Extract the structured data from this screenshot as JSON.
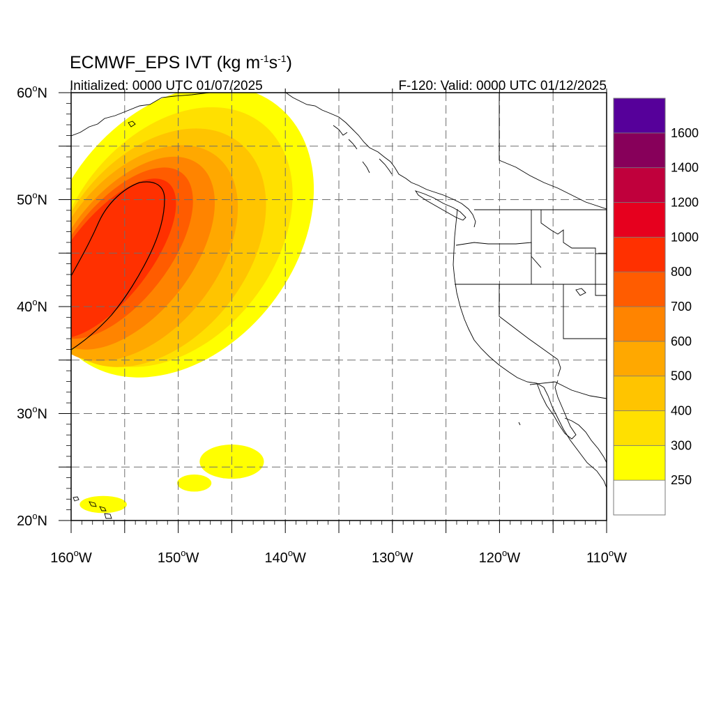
{
  "title": {
    "main_prefix": "ECMWF_EPS IVT (kg m",
    "sup1": "-1",
    "mid": "s",
    "sup2": "-1",
    "suffix": ")",
    "initialized": "Initialized: 0000 UTC 01/07/2025",
    "valid": "F-120: Valid: 0000 UTC 01/12/2025"
  },
  "map": {
    "lon_range": [
      -160,
      -110
    ],
    "lat_range": [
      20,
      60
    ],
    "lon_ticks": [
      {
        "value": -160,
        "label": "160"
      },
      {
        "value": -150,
        "label": "150"
      },
      {
        "value": -140,
        "label": "140"
      },
      {
        "value": -130,
        "label": "130"
      },
      {
        "value": -120,
        "label": "120"
      },
      {
        "value": -110,
        "label": "110"
      }
    ],
    "lat_ticks": [
      {
        "value": 20,
        "label": "20"
      },
      {
        "value": 30,
        "label": "30"
      },
      {
        "value": 40,
        "label": "40"
      },
      {
        "value": 50,
        "label": "50"
      },
      {
        "value": 60,
        "label": "60"
      }
    ],
    "lon_suffix": "W",
    "lat_suffix": "N",
    "degree": "o",
    "grid": "dashed, every 5 degrees",
    "ivt_fields": [
      {
        "level": 250,
        "color": "#ffff00",
        "lat": 47.0,
        "lon": -150.0,
        "lat_radius": 15.0,
        "lon_radius": 11.0,
        "rotation": 38
      },
      {
        "level": 300,
        "color": "#ffe000",
        "lat": 46.5,
        "lon": -150.5,
        "lat_radius": 13.5,
        "lon_radius": 9.5,
        "rotation": 38
      },
      {
        "level": 400,
        "color": "#ffc400",
        "lat": 45.5,
        "lon": -152.0,
        "lat_radius": 12.5,
        "lon_radius": 8.5,
        "rotation": 38
      },
      {
        "level": 500,
        "color": "#ffa800",
        "lat": 45.0,
        "lon": -153.5,
        "lat_radius": 11.5,
        "lon_radius": 7.2,
        "rotation": 38
      },
      {
        "level": 600,
        "color": "#ff8400",
        "lat": 45.0,
        "lon": -154.5,
        "lat_radius": 10.5,
        "lon_radius": 5.8,
        "rotation": 38
      },
      {
        "level": 700,
        "color": "#ff5c00",
        "lat": 45.0,
        "lon": -155.5,
        "lat_radius": 9.5,
        "lon_radius": 4.6,
        "rotation": 38
      },
      {
        "level": 800,
        "color": "#ff3000",
        "lat": 44.5,
        "lon": -156.5,
        "lat_radius": 9.0,
        "lon_radius": 3.8,
        "rotation": 38
      }
    ],
    "ivt_patches": [
      {
        "level": 250,
        "color": "#ffff00",
        "lat": 25.5,
        "lon": -145.0,
        "lat_radius": 1.6,
        "lon_radius": 3.0
      },
      {
        "level": 250,
        "color": "#ffff00",
        "lat": 23.5,
        "lon": -148.5,
        "lat_radius": 0.8,
        "lon_radius": 1.6
      },
      {
        "level": 250,
        "color": "#ffff00",
        "lat": 21.5,
        "lon": -157.0,
        "lat_radius": 0.8,
        "lon_radius": 2.2
      }
    ]
  },
  "colorbar": {
    "levels": [
      250,
      300,
      400,
      500,
      600,
      700,
      800,
      1000,
      1200,
      1400,
      1600
    ],
    "labels": [
      "250",
      "300",
      "400",
      "500",
      "600",
      "700",
      "800",
      "1000",
      "1200",
      "1400",
      "1600"
    ],
    "colors": [
      "#ffffff",
      "#ffff00",
      "#ffe000",
      "#ffc400",
      "#ffa800",
      "#ff8400",
      "#ff5c00",
      "#ff3000",
      "#e6001e",
      "#c0003c",
      "#87005a",
      "#56009a"
    ]
  }
}
